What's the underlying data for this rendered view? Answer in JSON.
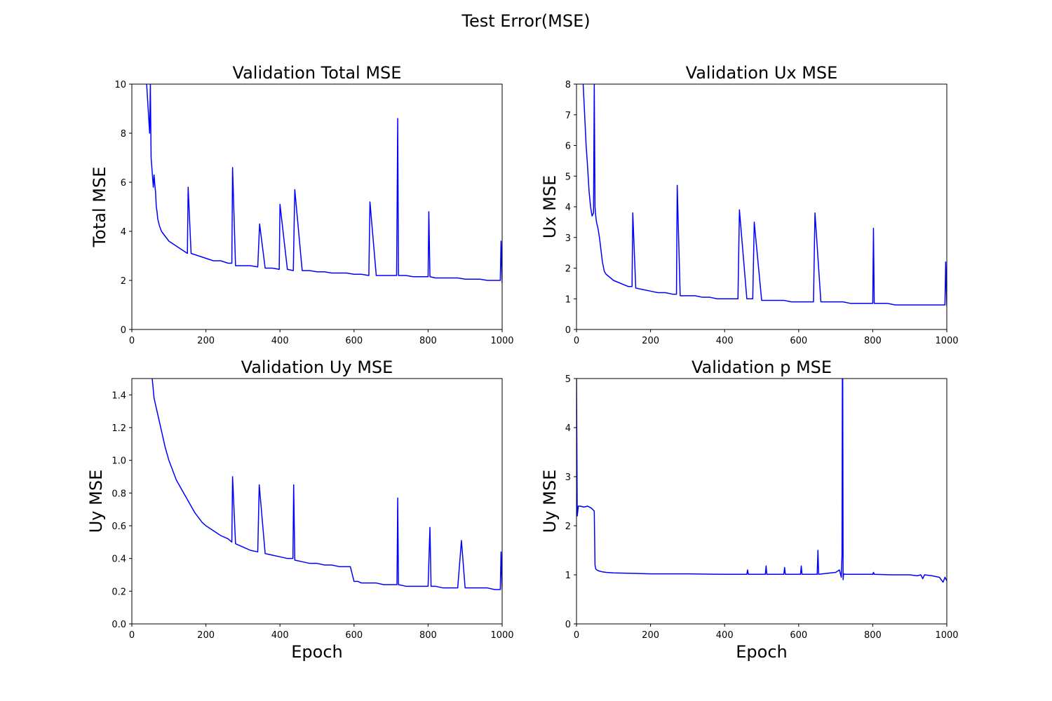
{
  "figure": {
    "suptitle": "Test Error(MSE)"
  },
  "colors": {
    "line": "#0000ff",
    "axis": "#000000",
    "background": "#ffffff"
  },
  "chart_data": [
    {
      "type": "line",
      "title": "Validation Total MSE",
      "xlabel": "",
      "ylabel": "Total MSE",
      "xlim": [
        0,
        1000
      ],
      "ylim": [
        0,
        10
      ],
      "xticks": [
        0,
        200,
        400,
        600,
        800,
        1000
      ],
      "yticks": [
        0,
        2,
        4,
        6,
        8,
        10
      ],
      "grid": false,
      "series": [
        {
          "x": [
            40,
            44,
            48,
            50,
            52,
            55,
            58,
            60,
            62,
            64,
            66,
            68,
            70,
            75,
            80,
            90,
            100,
            110,
            120,
            130,
            140,
            150,
            152,
            160,
            180,
            200,
            220,
            240,
            260,
            270,
            272,
            280,
            300,
            320,
            340,
            345,
            360,
            380,
            398,
            400,
            420,
            436,
            440,
            460,
            480,
            500,
            520,
            540,
            560,
            580,
            600,
            620,
            640,
            643,
            660,
            680,
            700,
            715,
            718,
            720,
            740,
            760,
            780,
            800,
            802,
            805,
            820,
            840,
            860,
            880,
            900,
            920,
            940,
            960,
            980,
            995,
            997,
            1000
          ],
          "y": [
            10,
            9,
            8,
            10,
            7,
            6.4,
            5.8,
            6.3,
            5.9,
            5.6,
            5.0,
            4.8,
            4.5,
            4.2,
            4.0,
            3.8,
            3.6,
            3.5,
            3.4,
            3.3,
            3.2,
            3.1,
            5.8,
            3.1,
            3.0,
            2.9,
            2.8,
            2.8,
            2.7,
            2.7,
            6.6,
            2.6,
            2.6,
            2.6,
            2.55,
            4.3,
            2.5,
            2.5,
            2.45,
            5.1,
            2.45,
            2.4,
            5.7,
            2.4,
            2.4,
            2.35,
            2.35,
            2.3,
            2.3,
            2.3,
            2.25,
            2.25,
            2.2,
            5.2,
            2.2,
            2.2,
            2.2,
            2.2,
            8.6,
            2.2,
            2.2,
            2.15,
            2.15,
            2.15,
            4.8,
            2.15,
            2.1,
            2.1,
            2.1,
            2.1,
            2.05,
            2.05,
            2.05,
            2.0,
            2.0,
            2.0,
            3.6,
            1.9
          ]
        }
      ]
    },
    {
      "type": "line",
      "title": "Validation Ux MSE",
      "xlabel": "",
      "ylabel": "Ux MSE",
      "xlim": [
        0,
        1000
      ],
      "ylim": [
        0,
        8
      ],
      "xticks": [
        0,
        200,
        400,
        600,
        800,
        1000
      ],
      "yticks": [
        0,
        1,
        2,
        3,
        4,
        5,
        6,
        7,
        8
      ],
      "grid": false,
      "series": [
        {
          "x": [
            18,
            22,
            26,
            30,
            34,
            38,
            42,
            46,
            48,
            50,
            52,
            54,
            58,
            62,
            66,
            70,
            75,
            80,
            90,
            100,
            120,
            140,
            150,
            152,
            160,
            180,
            200,
            220,
            240,
            260,
            270,
            272,
            280,
            300,
            320,
            340,
            360,
            380,
            400,
            420,
            430,
            436,
            440,
            460,
            476,
            480,
            500,
            520,
            540,
            560,
            580,
            600,
            620,
            640,
            644,
            660,
            680,
            700,
            720,
            740,
            760,
            780,
            800,
            802,
            804,
            820,
            840,
            860,
            880,
            900,
            920,
            940,
            960,
            980,
            995,
            997,
            1000
          ],
          "y": [
            8,
            7,
            6,
            5.3,
            4.5,
            4.0,
            3.7,
            3.8,
            8,
            4.0,
            3.7,
            3.5,
            3.3,
            3.0,
            2.6,
            2.2,
            1.9,
            1.8,
            1.7,
            1.6,
            1.5,
            1.4,
            1.4,
            3.8,
            1.35,
            1.3,
            1.25,
            1.2,
            1.2,
            1.15,
            1.15,
            4.7,
            1.1,
            1.1,
            1.1,
            1.05,
            1.05,
            1.0,
            1.0,
            1.0,
            1.0,
            1.0,
            3.9,
            1.0,
            1.0,
            3.5,
            0.95,
            0.95,
            0.95,
            0.95,
            0.9,
            0.9,
            0.9,
            0.9,
            3.8,
            0.9,
            0.9,
            0.9,
            0.9,
            0.85,
            0.85,
            0.85,
            0.85,
            3.3,
            0.85,
            0.85,
            0.85,
            0.8,
            0.8,
            0.8,
            0.8,
            0.8,
            0.8,
            0.8,
            0.8,
            2.2,
            0.75
          ]
        }
      ]
    },
    {
      "type": "line",
      "title": "Validation Uy MSE",
      "xlabel": "Epoch",
      "ylabel": "Uy MSE",
      "xlim": [
        0,
        1000
      ],
      "ylim": [
        0,
        1.5
      ],
      "xticks": [
        0,
        200,
        400,
        600,
        800,
        1000
      ],
      "yticks": [
        0.0,
        0.2,
        0.4,
        0.6,
        0.8,
        1.0,
        1.2,
        1.4
      ],
      "grid": false,
      "series": [
        {
          "x": [
            55,
            60,
            70,
            80,
            90,
            100,
            110,
            120,
            130,
            140,
            150,
            160,
            170,
            180,
            190,
            200,
            220,
            240,
            260,
            270,
            272,
            280,
            300,
            320,
            340,
            344,
            360,
            380,
            400,
            420,
            435,
            437,
            440,
            460,
            480,
            500,
            520,
            540,
            560,
            580,
            590,
            600,
            610,
            620,
            640,
            660,
            680,
            700,
            716,
            718,
            720,
            740,
            760,
            780,
            800,
            805,
            808,
            820,
            840,
            860,
            880,
            890,
            900,
            920,
            940,
            960,
            980,
            995,
            997,
            1000
          ],
          "y": [
            1.5,
            1.38,
            1.28,
            1.18,
            1.08,
            1.0,
            0.94,
            0.88,
            0.84,
            0.8,
            0.76,
            0.72,
            0.68,
            0.65,
            0.62,
            0.6,
            0.57,
            0.54,
            0.52,
            0.5,
            0.9,
            0.49,
            0.47,
            0.45,
            0.44,
            0.85,
            0.43,
            0.42,
            0.41,
            0.4,
            0.4,
            0.85,
            0.39,
            0.38,
            0.37,
            0.37,
            0.36,
            0.36,
            0.35,
            0.35,
            0.35,
            0.26,
            0.26,
            0.25,
            0.25,
            0.25,
            0.24,
            0.24,
            0.24,
            0.77,
            0.24,
            0.23,
            0.23,
            0.23,
            0.23,
            0.59,
            0.23,
            0.23,
            0.22,
            0.22,
            0.22,
            0.51,
            0.22,
            0.22,
            0.22,
            0.22,
            0.21,
            0.21,
            0.44,
            0.21
          ]
        }
      ]
    },
    {
      "type": "line",
      "title": "Validation p MSE",
      "xlabel": "Epoch",
      "ylabel": "Uy MSE",
      "xlim": [
        0,
        1000
      ],
      "ylim": [
        0,
        5
      ],
      "xticks": [
        0,
        200,
        400,
        600,
        800,
        1000
      ],
      "yticks": [
        0,
        1,
        2,
        3,
        4,
        5
      ],
      "grid": false,
      "series": [
        {
          "x": [
            0,
            2,
            5,
            10,
            20,
            30,
            40,
            48,
            50,
            52,
            55,
            60,
            70,
            80,
            100,
            150,
            200,
            300,
            400,
            460,
            462,
            464,
            510,
            512,
            514,
            560,
            562,
            564,
            605,
            607,
            609,
            650,
            652,
            654,
            700,
            710,
            715,
            717,
            718,
            719,
            720,
            721,
            722,
            725,
            800,
            802,
            804,
            850,
            880,
            900,
            920,
            930,
            935,
            940,
            960,
            980,
            990,
            995,
            1000
          ],
          "y": [
            5,
            2.2,
            2.4,
            2.4,
            2.38,
            2.4,
            2.36,
            2.3,
            1.2,
            1.12,
            1.1,
            1.08,
            1.06,
            1.05,
            1.04,
            1.03,
            1.02,
            1.02,
            1.01,
            1.01,
            1.1,
            1.01,
            1.01,
            1.18,
            1.01,
            1.01,
            1.15,
            1.01,
            1.01,
            1.18,
            1.01,
            1.01,
            1.5,
            1.01,
            1.05,
            1.1,
            0.95,
            1.4,
            5,
            5,
            0.9,
            1.0,
            1.02,
            1.01,
            1.01,
            1.05,
            1.01,
            1.0,
            1.0,
            1.0,
            0.98,
            1.0,
            0.92,
            1.0,
            0.98,
            0.95,
            0.85,
            0.95,
            0.88
          ]
        }
      ]
    }
  ]
}
